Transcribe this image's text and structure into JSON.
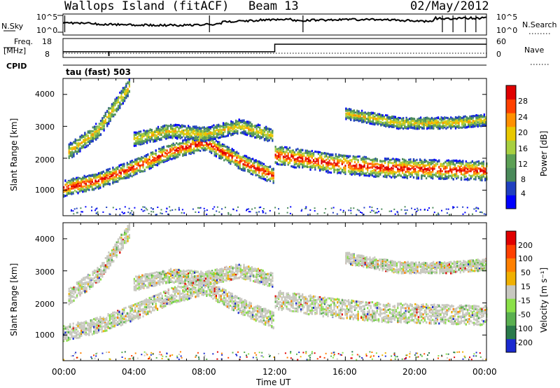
{
  "header": {
    "station": "Wallops Island (fitACF)",
    "beam": "Beam 13",
    "date": "02/May/2012"
  },
  "panels": {
    "nsky_label": "N.Sky",
    "nsky_ticks": [
      "10^5",
      "10^0"
    ],
    "nsearch_label": "N.Search",
    "nsearch_ticks": [
      "10^5",
      "10^0"
    ],
    "freq_label": "Freq.",
    "freq_unit": "[MHz]",
    "freq_ticks": [
      "18",
      "8"
    ],
    "nave_label": "Nave",
    "nave_ticks": [
      "60",
      "0"
    ],
    "cpid_label": "CPID",
    "cpid_text": "tau (fast) 503"
  },
  "chart_data": [
    {
      "type": "heatmap",
      "name": "power",
      "ylabel": "Slant Range [km]",
      "ylim": [
        200,
        4500
      ],
      "yticks": [
        "4000",
        "3000",
        "2000",
        "1000"
      ],
      "xlim": [
        0,
        24
      ],
      "colorbar_label": "Power [dB]",
      "colorbar_ticks": [
        "28",
        "24",
        "20",
        "16",
        "12",
        "8",
        "4"
      ],
      "colors": [
        "#0000ff",
        "#2040c0",
        "#4a8a5a",
        "#5ca055",
        "#a8d040",
        "#e8c800",
        "#ff9000",
        "#ff4000",
        "#e00000"
      ],
      "echo_bands": [
        {
          "t": [
            0.0,
            2.0,
            4.0,
            6.0,
            8.0,
            10.0,
            11.9
          ],
          "r": [
            1050,
            1300,
            1700,
            2200,
            2500,
            1900,
            1450
          ],
          "width": 250,
          "level": "high"
        },
        {
          "t": [
            0.3,
            2.0,
            3.8
          ],
          "r": [
            2200,
            2900,
            4300
          ],
          "width": 250,
          "level": "mid"
        },
        {
          "t": [
            4.0,
            6.0,
            8.0,
            10.0,
            11.9
          ],
          "r": [
            2600,
            2850,
            2750,
            3000,
            2700
          ],
          "width": 220,
          "level": "mid"
        },
        {
          "t": [
            12.0,
            15.0,
            18.0,
            21.0,
            24.0
          ],
          "r": [
            2100,
            1850,
            1700,
            1650,
            1600
          ],
          "width": 300,
          "level": "high"
        },
        {
          "t": [
            16.0,
            19.0,
            22.0,
            24.0
          ],
          "r": [
            3400,
            3100,
            3100,
            3200
          ],
          "width": 180,
          "level": "mid"
        }
      ]
    },
    {
      "type": "heatmap",
      "name": "velocity",
      "ylabel": "Slant Range [km]",
      "ylim": [
        200,
        4500
      ],
      "yticks": [
        "4000",
        "3000",
        "2000",
        "1000"
      ],
      "xlim": [
        0,
        24
      ],
      "xticks": [
        "00:00",
        "04:00",
        "08:00",
        "12:00",
        "16:00",
        "20:00",
        "00:00"
      ],
      "xlabel": "Time UT",
      "colorbar_label": "Velocity [m s⁻¹]",
      "colorbar_ticks": [
        "200",
        "100",
        "50",
        "15",
        "-15",
        "-50",
        "-100",
        "-200"
      ],
      "colors": [
        "#1a2ad0",
        "#2a7a4a",
        "#5ab050",
        "#8ae048",
        "#c8c8c0",
        "#f0b000",
        "#ff8000",
        "#ff4000",
        "#e00000"
      ]
    }
  ],
  "freq_series": {
    "t": [
      0,
      12.0,
      12.0,
      24
    ],
    "mhz": [
      11,
      11,
      15,
      15
    ]
  }
}
